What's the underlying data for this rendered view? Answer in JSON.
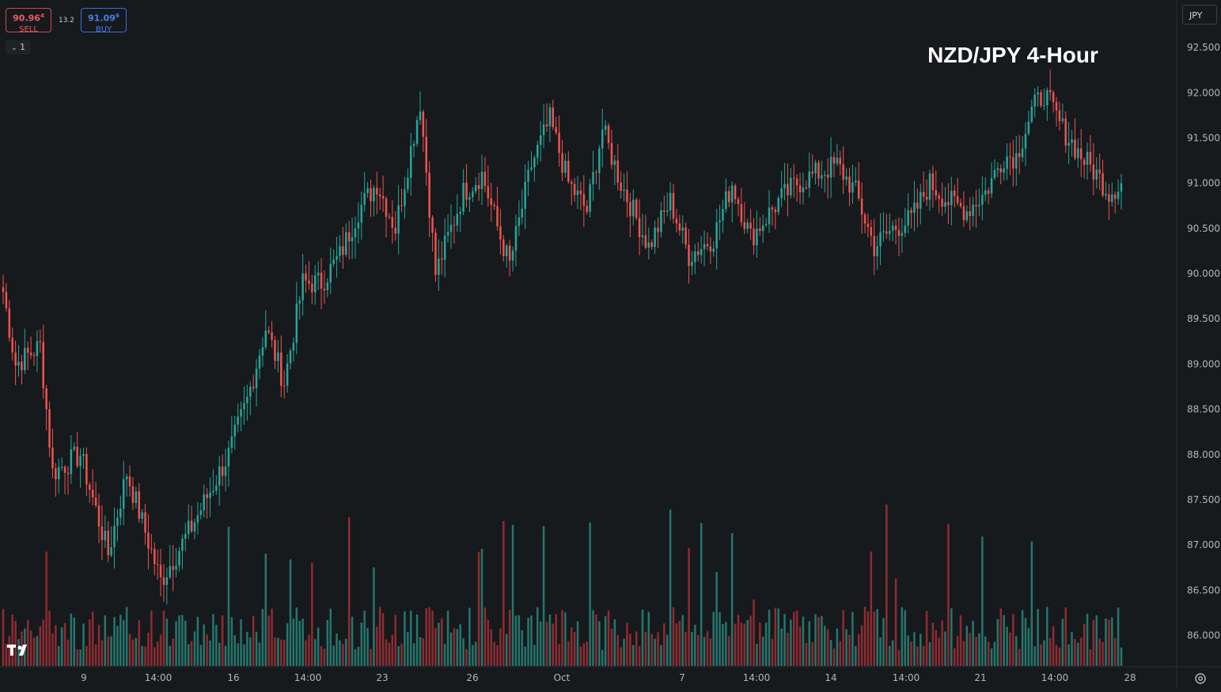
{
  "title": "NZD/JPY 4-Hour",
  "sell": {
    "price": "90.96",
    "price_sup": "4",
    "label": "SELL"
  },
  "buy": {
    "price": "91.09",
    "price_sup": "6",
    "label": "BUY"
  },
  "spread": "13.2",
  "indicator_toggle": "1",
  "currency": "JPY",
  "icons": [
    "chevron-down-icon",
    "tradingview-logo-icon",
    "settings-icon"
  ],
  "colors": {
    "background": "#161a1d",
    "up": "#26a69a",
    "down": "#ef5350",
    "volume_up": "#26766d",
    "volume_down": "#8e2c31",
    "axis_text": "#b2b5be"
  },
  "chart_data": {
    "type": "candlestick",
    "title": "NZD/JPY 4-Hour",
    "y_ticks": [
      "92.500",
      "92.000",
      "91.500",
      "91.000",
      "90.500",
      "90.000",
      "89.500",
      "89.000",
      "88.500",
      "88.000",
      "87.500",
      "87.000",
      "86.500",
      "86.000"
    ],
    "ylim": [
      85.65,
      92.95
    ],
    "x_ticks": [
      "9",
      "14:00",
      "16",
      "14:00",
      "23",
      "26",
      "Oct",
      "7",
      "14:00",
      "14",
      "14:00",
      "21",
      "14:00",
      "28"
    ],
    "start_price": 89.8,
    "end_price": 91.0,
    "anchors": [
      [
        0,
        89.8
      ],
      [
        4,
        89.0
      ],
      [
        12,
        89.2
      ],
      [
        16,
        87.8
      ],
      [
        25,
        88.0
      ],
      [
        34,
        86.9
      ],
      [
        40,
        87.8
      ],
      [
        51,
        86.6
      ],
      [
        61,
        87.2
      ],
      [
        73,
        88.0
      ],
      [
        79,
        88.6
      ],
      [
        85,
        89.4
      ],
      [
        91,
        88.8
      ],
      [
        97,
        89.9
      ],
      [
        103,
        89.9
      ],
      [
        109,
        90.2
      ],
      [
        115,
        90.7
      ],
      [
        121,
        91.0
      ],
      [
        127,
        90.5
      ],
      [
        135,
        91.9
      ],
      [
        140,
        90.0
      ],
      [
        149,
        90.9
      ],
      [
        155,
        91.1
      ],
      [
        161,
        90.4
      ],
      [
        164,
        90.1
      ],
      [
        171,
        91.2
      ],
      [
        177,
        91.7
      ],
      [
        183,
        91.0
      ],
      [
        189,
        90.7
      ],
      [
        194,
        91.6
      ],
      [
        200,
        91.0
      ],
      [
        209,
        90.3
      ],
      [
        216,
        90.8
      ],
      [
        222,
        90.2
      ],
      [
        230,
        90.4
      ],
      [
        236,
        91.0
      ],
      [
        242,
        90.4
      ],
      [
        251,
        90.8
      ],
      [
        257,
        91.0
      ],
      [
        263,
        91.1
      ],
      [
        270,
        91.2
      ],
      [
        276,
        90.9
      ],
      [
        282,
        90.3
      ],
      [
        288,
        90.5
      ],
      [
        294,
        90.6
      ],
      [
        300,
        91.0
      ],
      [
        306,
        90.8
      ],
      [
        312,
        90.7
      ],
      [
        318,
        90.9
      ],
      [
        324,
        91.3
      ],
      [
        328,
        91.3
      ],
      [
        333,
        91.8
      ],
      [
        337,
        92.0
      ],
      [
        343,
        91.6
      ],
      [
        349,
        91.3
      ],
      [
        354,
        91.1
      ],
      [
        358,
        90.9
      ],
      [
        362,
        91.0
      ]
    ],
    "volume_scale_max": 1.0
  }
}
